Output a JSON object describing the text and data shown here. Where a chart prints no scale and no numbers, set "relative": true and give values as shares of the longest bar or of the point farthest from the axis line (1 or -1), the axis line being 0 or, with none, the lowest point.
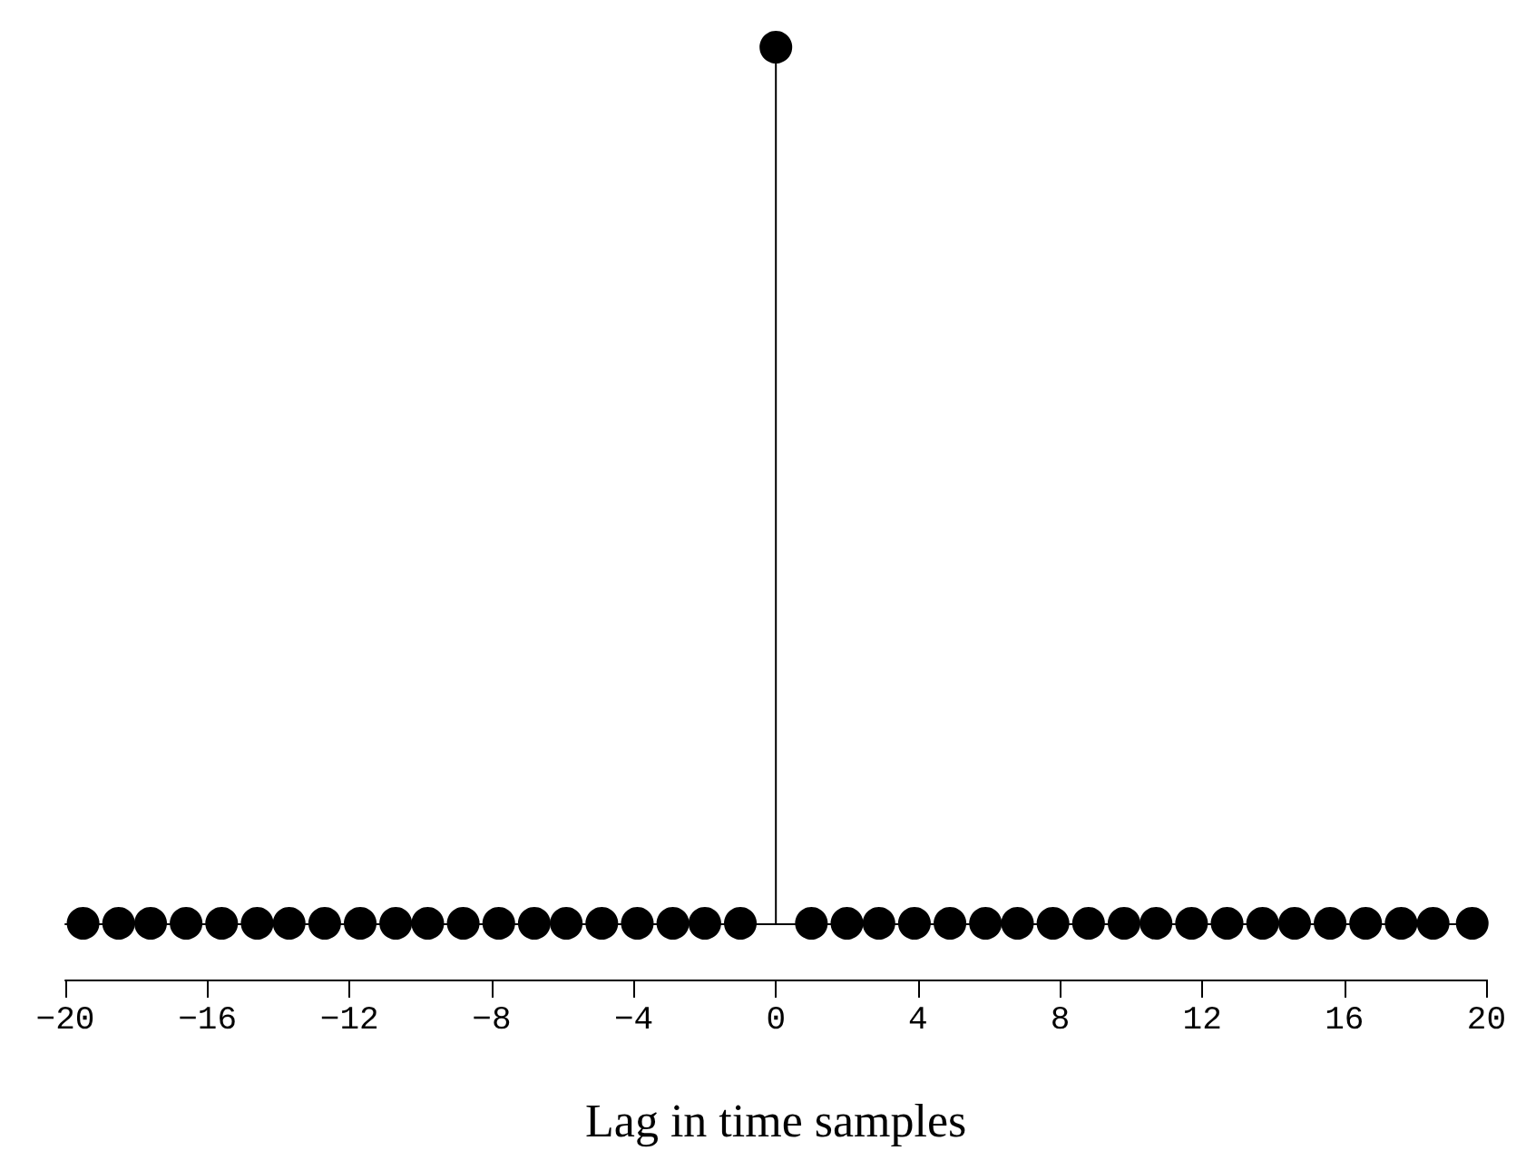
{
  "chart_data": {
    "type": "lollipop",
    "relative": true,
    "xlabel": "Lag in time samples",
    "marker": "circle",
    "color": "#000000",
    "x": [
      -19.5,
      -18.5,
      -17.6,
      -16.6,
      -15.6,
      -14.6,
      -13.7,
      -12.7,
      -11.7,
      -10.7,
      -9.8,
      -8.8,
      -7.8,
      -6.8,
      -5.9,
      -4.9,
      -3.9,
      -2.9,
      -2.0,
      -1.0,
      0,
      1.0,
      2.0,
      2.9,
      3.9,
      4.9,
      5.9,
      6.8,
      7.8,
      8.8,
      9.8,
      10.7,
      11.7,
      12.7,
      13.7,
      14.6,
      15.6,
      16.6,
      17.6,
      18.5,
      19.6
    ],
    "values": [
      0,
      0,
      0,
      0,
      0,
      0,
      0,
      0,
      0,
      0,
      0,
      0,
      0,
      0,
      0,
      0,
      0,
      0,
      0,
      0,
      1,
      0,
      0,
      0,
      0,
      0,
      0,
      0,
      0,
      0,
      0,
      0,
      0,
      0,
      0,
      0,
      0,
      0,
      0,
      0,
      0
    ],
    "xlim": [
      -20,
      20
    ],
    "xticks": [
      -20,
      -16,
      -12,
      -8,
      -4,
      0,
      4,
      8,
      12,
      16,
      20
    ]
  }
}
